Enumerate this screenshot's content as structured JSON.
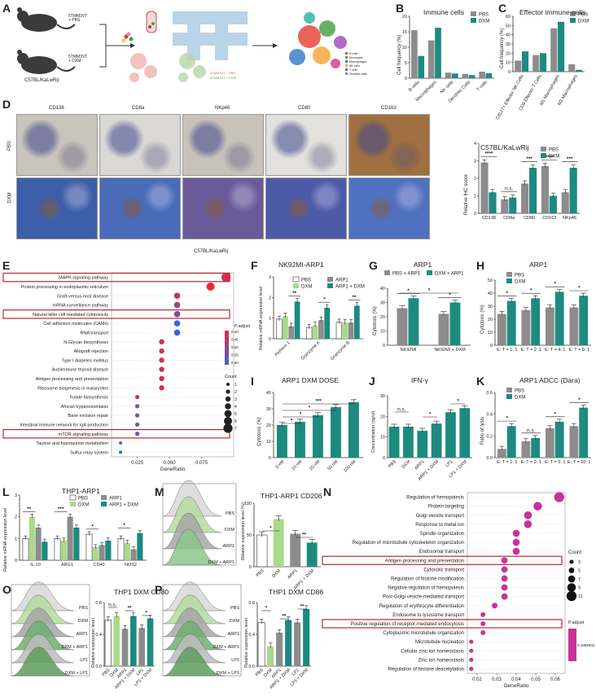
{
  "panels": [
    "A",
    "B",
    "C",
    "D",
    "E",
    "F",
    "G",
    "H",
    "I",
    "J",
    "K",
    "L",
    "M",
    "N",
    "O",
    "P"
  ],
  "colors": {
    "pbs": "#8c8c8c",
    "dxm": "#1d8a80",
    "green": "#8cc63f",
    "white": "#ffffff",
    "dark": "#1d6e66",
    "light_green": "#a9d98a",
    "magenta": "#c8329a",
    "red_box": "#c0262b"
  },
  "panel_a": {
    "mouse_top": "5TMM3VT\n+ PBS",
    "mouse_bottom": "5TMM3VT\n+ DXM",
    "strain": "C57BL/KaLwRij",
    "legend_small": [
      "5TMM3VT + PBS",
      "5TMM3VT + DXM"
    ],
    "tsne_legend": [
      "B cells",
      "Monocytes",
      "Macrophages",
      "NK cells",
      "T cells",
      "Dendritic cells"
    ]
  },
  "panel_b": {
    "title": "Immune cells",
    "ylabel": "Cell frequency (%)",
    "legend": [
      "PBS",
      "DXM"
    ],
    "categories": [
      "B cells",
      "Macrophages",
      "NK cells",
      "Dendritic Cells",
      "T cells"
    ],
    "pbs": [
      15.5,
      12.2,
      1.8,
      1.4,
      2.1
    ],
    "dxm": [
      7.2,
      16.3,
      1.5,
      1.0,
      1.6
    ],
    "yticks": [
      "0",
      "5",
      "10",
      "15",
      "20"
    ]
  },
  "panel_c": {
    "title": "Effector immune cells",
    "ylabel": "Cell frequency (%)",
    "legend": [
      "PBS",
      "DXM"
    ],
    "categories": [
      "Cd127+ Effector NK Cells",
      "CD8 Effector T Cells",
      "M1 Macrophages",
      "M2 Macrophages"
    ],
    "pbs": [
      12,
      18,
      47,
      8
    ],
    "dxm": [
      22,
      20,
      54,
      2
    ],
    "yticks": [
      "0",
      "10",
      "20",
      "30",
      "40",
      "50",
      "60"
    ]
  },
  "panel_d": {
    "markers": [
      "CD138",
      "CD8a",
      "NKp46",
      "CD80",
      "CD163"
    ],
    "rows": [
      "PBS",
      "DXM"
    ],
    "caption": "C57BL/KaLwRij",
    "chart_title": "C57BL/KaLwRij",
    "ylabel": "Relative IHC score",
    "legend": [
      "PBS",
      "DXM"
    ],
    "categories": [
      "CD138",
      "CD8a",
      "CD80",
      "CD163",
      "NKp46"
    ],
    "pbs": [
      2.9,
      0.8,
      1.7,
      2.7,
      1.2
    ],
    "dxm": [
      1.2,
      0.9,
      2.6,
      1.0,
      2.6
    ],
    "sig": [
      "****",
      "n.s.",
      "***",
      "****",
      "***"
    ],
    "yticks": [
      "0",
      "1",
      "2",
      "3",
      "4"
    ]
  },
  "panel_e": {
    "pathways": [
      "MAPK signaling pathway",
      "Protein processing in endoplasmic reticulum",
      "Graft-versus-host disease",
      "mRNA surveillance pathway",
      "Natural killer cell mediated cytotoxicity",
      "Cell adhesion molecules (CAMs)",
      "RNA transport",
      "N-Glycan biosynthesis",
      "Allograft rejection",
      "Type I diabetes mellitus",
      "Autoimmune thyroid disease",
      "Antigen processing and presentation",
      "Ribosome biogenesis in eukaryotes",
      "Folate biosynthesis",
      "African trypanosomiasis",
      "Base excision repair",
      "Intestinal immune network for IgA production",
      "mTOR signaling pathway",
      "Taurine and hypotaurine metabolism",
      "Sulfur relay system"
    ],
    "gene_ratio": [
      0.094,
      0.082,
      0.056,
      0.056,
      0.056,
      0.056,
      0.056,
      0.044,
      0.044,
      0.044,
      0.044,
      0.044,
      0.044,
      0.025,
      0.025,
      0.025,
      0.025,
      0.025,
      0.012,
      0.012
    ],
    "count": [
      7,
      6,
      4,
      4,
      4,
      4,
      4,
      3,
      3,
      3,
      3,
      3,
      3,
      2,
      2,
      2,
      2,
      2,
      1,
      1
    ],
    "p_adjust": [
      0.3,
      0.25,
      0.35,
      0.4,
      0.5,
      0.65,
      0.65,
      0.3,
      0.3,
      0.3,
      0.3,
      0.3,
      0.3,
      0.35,
      0.45,
      0.5,
      0.55,
      0.6,
      0.65,
      0.65
    ],
    "highlight": [
      "MAPK signaling pathway",
      "Natural killer cell mediated cytotoxicity",
      "mTOR signaling pathway"
    ],
    "xlabel": "GeneRatio",
    "xticks": [
      "0.025",
      "0.050",
      "0.075"
    ],
    "p_title": "P.adjust",
    "p_ticks": [
      "0.40",
      "0.45",
      "0.50",
      "0.55",
      "0.60"
    ],
    "count_title": "Count",
    "count_ticks": [
      "1",
      "2",
      "3",
      "4",
      "5",
      "6",
      "7"
    ]
  },
  "panel_f": {
    "title": "NK92MI-ARP1",
    "ylabel": "Relative mRNA expression level",
    "legend": [
      "PBS",
      "DXM",
      "ARP1",
      "ARP1 + DXM"
    ],
    "categories": [
      "Perforin 1",
      "Granzyme A",
      "Granzyme B"
    ],
    "series": {
      "pbs": [
        0.95,
        0.55,
        0.8
      ],
      "dxm": [
        1.1,
        0.65,
        0.78
      ],
      "arp1": [
        0.6,
        0.9,
        0.78
      ],
      "arp1_dxm": [
        1.8,
        1.5,
        1.6
      ]
    },
    "sig": [
      "**",
      "*",
      "**"
    ],
    "yticks": [
      "0",
      "1",
      "2",
      "3"
    ]
  },
  "panel_g": {
    "title": "ARP1",
    "ylabel": "Cytotoxic (%)",
    "legend": [
      "PBS + ARP1",
      "DXM + ARP1"
    ],
    "categories": [
      "NK92MI",
      "NK92MI + DXM"
    ],
    "pbs": [
      26,
      22
    ],
    "dxm": [
      33,
      30
    ],
    "sig": [
      "*",
      "*",
      "*"
    ],
    "yticks": [
      "0",
      "10",
      "20",
      "30",
      "40"
    ]
  },
  "panel_h": {
    "title": "ARP1",
    "ylabel": "Cytotoxic (%)",
    "legend": [
      "PBS",
      "DXM"
    ],
    "categories": [
      "E: T = 1: 1",
      "E: T = 2: 1",
      "E: T = 4: 1",
      "E: T = 8: 1"
    ],
    "pbs": [
      24,
      27,
      29,
      29
    ],
    "dxm": [
      34,
      36,
      41,
      38
    ],
    "sig": [
      "*",
      "*",
      "*",
      "*"
    ],
    "yticks": [
      "0",
      "10",
      "20",
      "30",
      "40",
      "50"
    ]
  },
  "panel_i": {
    "title": "ARP1 DXM DOSE",
    "ylabel": "Cytotoxic (%)",
    "categories": [
      "0 nM",
      "10 nM",
      "20 nM",
      "50 nM",
      "100 nM"
    ],
    "values": [
      20,
      22,
      26,
      31,
      34
    ],
    "sig": [
      "*",
      "*",
      "*",
      "***"
    ],
    "yticks": [
      "0",
      "10",
      "20",
      "30",
      "40"
    ]
  },
  "panel_j": {
    "title": "IFN-γ",
    "ylabel": "Concentration (ng/ul)",
    "categories": [
      "PBS",
      "DXM",
      "ARP1",
      "ARP1 + DXM",
      "LP1",
      "LP1 + DXM"
    ],
    "values": [
      15,
      15,
      13,
      16.5,
      22,
      24
    ],
    "sig": [
      "n.s.",
      "*",
      "*"
    ],
    "yticks": [
      "0",
      "10",
      "20",
      "30"
    ]
  },
  "panel_k": {
    "title": "ARP1 ADCC (Dara)",
    "ylabel": "Ratio of lysis",
    "legend": [
      "PBS",
      "DXM"
    ],
    "categories": [
      "E: T = 1: 1",
      "E: T = 2: 1",
      "E: T = 5: 1",
      "E: T = 10: 1"
    ],
    "pbs": [
      0.08,
      0.15,
      0.27,
      0.29
    ],
    "dxm": [
      0.29,
      0.18,
      0.33,
      0.46
    ],
    "sig": [
      "*",
      "n.s.",
      "*",
      "*"
    ],
    "yticks": [
      "0.0",
      "0.2",
      "0.4",
      "0.6"
    ]
  },
  "panel_l": {
    "title": "THP1-ARP1",
    "ylabel": "Relative mRNA expression level",
    "legend": [
      "PBS",
      "DXM",
      "ARP1",
      "ARP1 + DXM"
    ],
    "categories": [
      "IL-10",
      "ARG1",
      "CD40",
      "NOS2"
    ],
    "series": {
      "pbs": [
        1.0,
        1.0,
        1.2,
        1.0
      ],
      "dxm": [
        2.0,
        0.9,
        0.6,
        0.8
      ],
      "arp1": [
        1.5,
        2.0,
        0.7,
        0.5
      ],
      "arp1_dxm": [
        0.85,
        1.5,
        0.9,
        1.25
      ]
    },
    "sig": [
      "**",
      "*",
      "n.s.",
      "***",
      "*",
      "*",
      "*"
    ],
    "yticks": [
      "0",
      "1",
      "2",
      "3"
    ]
  },
  "panel_m": {
    "title": "THP1-ARP1 CD206",
    "ylabel": "Relative expression level (%)",
    "hist_labels": [
      "PBS",
      "DXM",
      "ARP1",
      "DXM + ARP1"
    ],
    "categories": [
      "PBS",
      "DXM",
      "ARP1",
      "ARP1 + DXM"
    ],
    "values": [
      50,
      75,
      52,
      38
    ],
    "sig": [
      "*",
      "**"
    ],
    "yticks": [
      "0",
      "50",
      "100"
    ]
  },
  "panel_n": {
    "terms": [
      "Regulation of hemopoiesis",
      "Protein targeting",
      "Golgi vesicle transport",
      "Response to metal ion",
      "Spindle organization",
      "Regulation of microtubule cytoskeleton organization",
      "Endosomal transport",
      "Antigen processing and presentation",
      "Cytosolic transport",
      "Regulation of histone modification",
      "Negative regulation of hemopoiesis",
      "Post-Golgi vesicle-mediated transport",
      "Regulation of erythrocyte differentiation",
      "Endosome to lysosome transport",
      "Positive regulation of receptor-mediated endocytosis",
      "Cytoplasmic microtubule organization",
      "Microtubule nucleation",
      "Cellular zinc ion homeostasis",
      "Zinc ion homeostasis",
      "Regulation of histone deacetylation"
    ],
    "gene_ratio": [
      0.062,
      0.051,
      0.046,
      0.046,
      0.04,
      0.04,
      0.04,
      0.034,
      0.034,
      0.034,
      0.034,
      0.034,
      0.029,
      0.023,
      0.023,
      0.023,
      0.017,
      0.017,
      0.017,
      0.017
    ],
    "count": [
      11,
      9,
      8,
      8,
      7,
      7,
      7,
      6,
      6,
      6,
      6,
      6,
      5,
      4,
      4,
      4,
      3,
      3,
      3,
      3
    ],
    "highlight": [
      "Antigen processing and presentation",
      "Positive regulation of receptor-mediated endocytosis"
    ],
    "xlabel": "GeneRatio",
    "xticks": [
      "0.02",
      "0.03",
      "0.04",
      "0.05",
      "0.06"
    ],
    "count_title": "Count",
    "count_ticks": [
      "3",
      "5",
      "7",
      "9",
      "11"
    ],
    "p_title": "P.adjust",
    "p_tick": "0.1985932"
  },
  "panel_o": {
    "title": "THP1 DXM CD80",
    "ylabel": "Relative expression level",
    "hist_labels": [
      "PBS",
      "DXM",
      "ARP1",
      "DXM + ARP1",
      "LP1",
      "DXM + LP1"
    ],
    "categories": [
      "PBS",
      "DXM",
      "ARP1",
      "ARP1 + DXM",
      "LP1",
      "LP1 + DXM"
    ],
    "values": [
      0.58,
      0.63,
      0.47,
      0.63,
      0.48,
      0.6
    ],
    "sig": [
      "n.s.",
      "**",
      "*"
    ],
    "yticks": [
      "0.0",
      "0.4",
      "0.8"
    ]
  },
  "panel_p": {
    "title": "THP1 DXM CD86",
    "ylabel": "Relative expression level",
    "hist_labels": [
      "PBS",
      "DXM",
      "ARP1",
      "DXM + ARP1",
      "LP1",
      "DXM + LP1"
    ],
    "categories": [
      "PBS",
      "DXM",
      "ARP1",
      "ARP1 + DXM",
      "LP1",
      "LP1 + DXM"
    ],
    "values": [
      0.55,
      0.25,
      0.42,
      0.58,
      0.55,
      0.72
    ],
    "sig": [
      "*",
      "**",
      "**"
    ],
    "yticks": [
      "0.0",
      "0.4",
      "0.8"
    ]
  }
}
